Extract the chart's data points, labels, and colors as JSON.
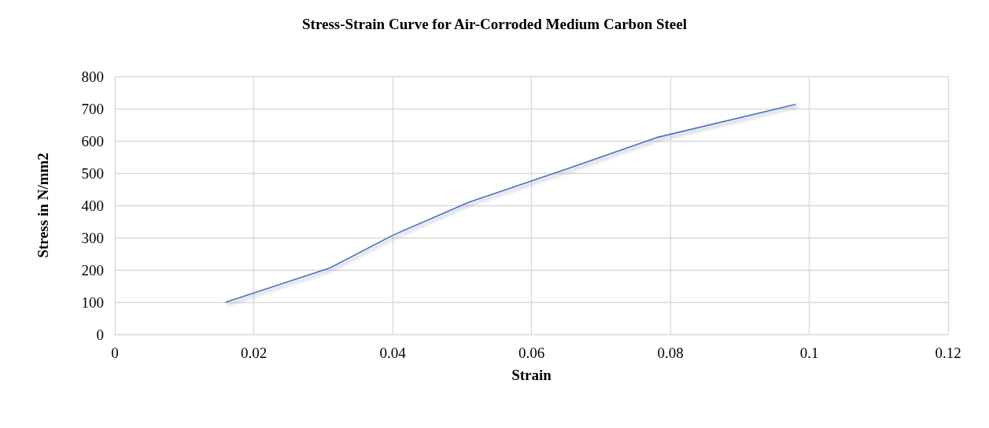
{
  "chart_data": {
    "type": "line",
    "title": "Stress-Strain Curve for Air-Corroded Medium Carbon Steel",
    "xlabel": "Strain",
    "ylabel": "Stress in N/mm2",
    "x": [
      0.016,
      0.031,
      0.04,
      0.051,
      0.065,
      0.078,
      0.098
    ],
    "series": [
      {
        "color": "#4472c4",
        "values": [
          100,
          206,
          307,
          410,
          512,
          610,
          713
        ]
      }
    ],
    "xlim": [
      0,
      0.12
    ],
    "xticks": [
      0,
      0.02,
      0.04,
      0.06,
      0.08,
      0.1,
      0.12
    ],
    "ylim": [
      0,
      800
    ],
    "yticks": [
      0,
      100,
      200,
      300,
      400,
      500,
      600,
      700,
      800
    ],
    "grid": true,
    "marker": "none",
    "line_style": "solid"
  }
}
